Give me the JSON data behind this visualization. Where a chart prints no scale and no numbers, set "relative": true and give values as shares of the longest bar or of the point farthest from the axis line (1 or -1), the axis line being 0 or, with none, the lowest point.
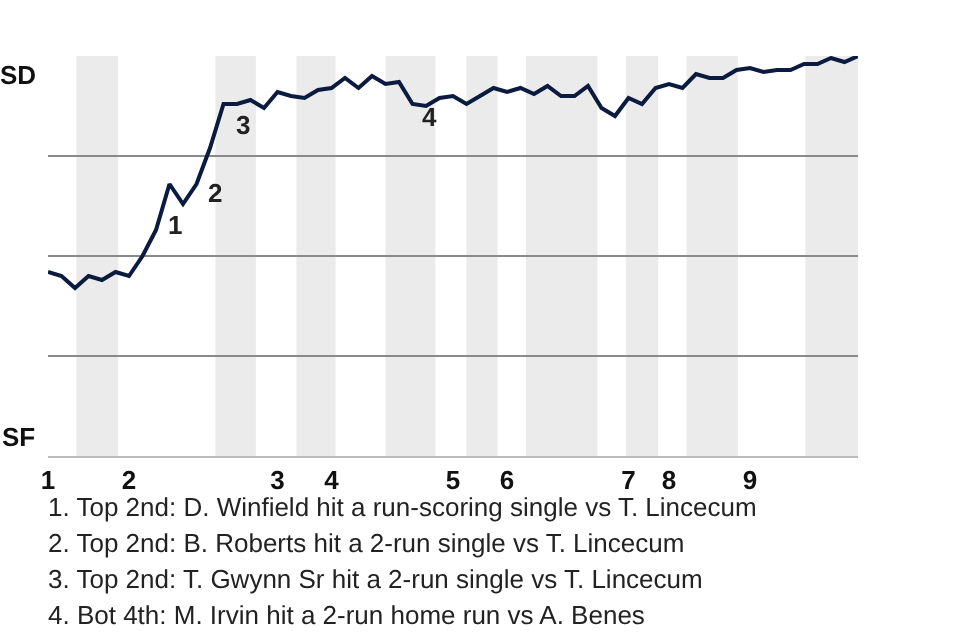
{
  "chart_data": {
    "type": "line",
    "categories": [
      "1",
      null,
      null,
      null,
      null,
      null,
      "2",
      null,
      null,
      null,
      null,
      null,
      null,
      null,
      null,
      null,
      null,
      "3",
      null,
      null,
      null,
      "4",
      null,
      null,
      null,
      null,
      null,
      null,
      null,
      null,
      "5",
      null,
      null,
      null,
      "6",
      null,
      null,
      null,
      null,
      null,
      null,
      null,
      null,
      "7",
      null,
      null,
      "8",
      null,
      null,
      null,
      null,
      null,
      "9",
      null,
      null,
      null,
      null,
      null,
      null,
      null,
      null
    ],
    "relative": true,
    "series": [
      {
        "color": "#0b1a3f",
        "values": [
          0.46,
          0.45,
          0.42,
          0.45,
          0.44,
          0.46,
          0.45,
          0.5,
          0.565,
          0.68,
          0.63,
          0.68,
          0.77,
          0.88,
          0.88,
          0.89,
          0.87,
          0.91,
          0.9,
          0.895,
          0.915,
          0.92,
          0.945,
          0.92,
          0.95,
          0.93,
          0.935,
          0.88,
          0.875,
          0.895,
          0.9,
          0.88,
          0.9,
          0.92,
          0.91,
          0.92,
          0.905,
          0.925,
          0.9,
          0.9,
          0.925,
          0.87,
          0.85,
          0.895,
          0.88,
          0.92,
          0.93,
          0.92,
          0.955,
          0.945,
          0.945,
          0.965,
          0.97,
          0.96,
          0.965,
          0.965,
          0.98,
          0.98,
          0.995,
          0.985,
          1.0
        ]
      }
    ],
    "grid": "y",
    "legend": false,
    "marker": "none",
    "line_style": "solid",
    "annotations": [
      {
        "text": "1",
        "y": 0.63
      },
      {
        "text": "3",
        "y": 0.88
      },
      {
        "text": "4",
        "y": 0.875
      },
      "2",
      "SD",
      "SF",
      "1. Top 2nd: D. Winfield hit a run-scoring single vs T. Lincecum",
      "2. Top 2nd: B. Roberts hit a 2-run single vs T. Lincecum",
      "3. Top 2nd: T. Gwynn Sr hit a 2-run single vs T. Lincecum",
      "4. Bot 4th: M. Irvin hit a 2-run home run vs A. Benes"
    ]
  }
}
